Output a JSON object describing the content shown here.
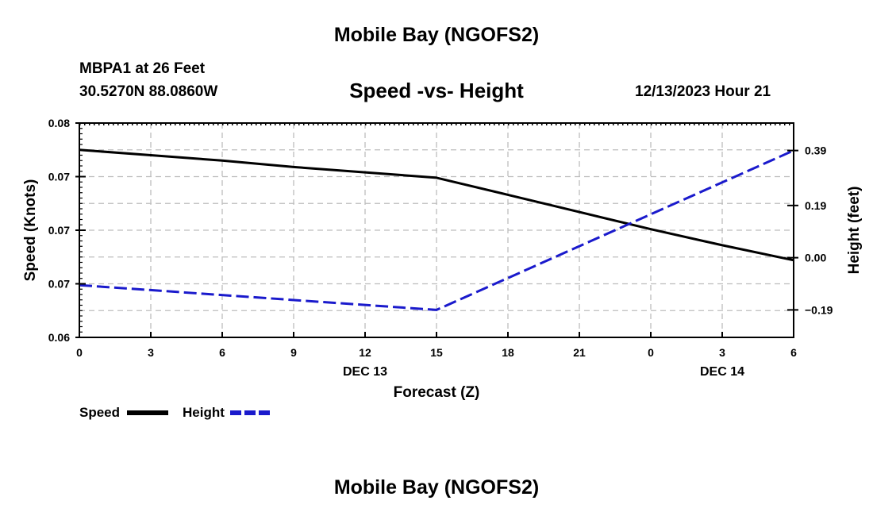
{
  "header": {
    "title": "Mobile Bay (NGOFS2)",
    "station": "MBPA1 at 26 Feet",
    "coords": "30.5270N  88.0860W",
    "chart_title": "Speed -vs- Height",
    "timestamp": "12/13/2023 Hour 21"
  },
  "footer": {
    "title": "Mobile Bay (NGOFS2)"
  },
  "colors": {
    "speed": "#000000",
    "height": "#1a1acc",
    "grid": "#bdbdbd"
  },
  "chart_data": {
    "type": "line",
    "title": "Speed -vs- Height",
    "xlabel": "Forecast (Z)",
    "ylabel": "Speed (Knots)",
    "y2label": "Height (feet)",
    "x_tick_labels": [
      "0",
      "3",
      "6",
      "9",
      "12",
      "15",
      "18",
      "21",
      "0",
      "3",
      "6"
    ],
    "x_date_labels": [
      {
        "at_tick": 4,
        "label": "DEC 13"
      },
      {
        "at_tick": 9,
        "label": "DEC 14"
      }
    ],
    "xlim": [
      0,
      30
    ],
    "y_tick_labels": [
      "0.06",
      "0.07",
      "0.07",
      "0.07",
      "0.08"
    ],
    "ylim": [
      0.06,
      0.08
    ],
    "y2_tick_labels": [
      "−0.19",
      "0.00",
      "0.19",
      "0.39"
    ],
    "y2_ticks": [
      -0.19,
      0.0,
      0.19,
      0.39
    ],
    "y2lim": [
      -0.29,
      0.49
    ],
    "grid": true,
    "legend_position": "bottom-left",
    "series": [
      {
        "name": "Speed",
        "axis": "left",
        "style": "solid",
        "x": [
          0,
          3,
          6,
          9,
          12,
          15,
          18,
          21,
          24,
          27,
          30
        ],
        "values": [
          0.0775,
          0.077,
          0.0765,
          0.0759,
          0.0754,
          0.0749,
          0.0733,
          0.0717,
          0.0701,
          0.0686,
          0.0672
        ]
      },
      {
        "name": "Height",
        "axis": "right",
        "style": "dashed",
        "x": [
          0,
          15,
          30
        ],
        "values": [
          -0.1,
          -0.19,
          0.39
        ]
      }
    ]
  }
}
